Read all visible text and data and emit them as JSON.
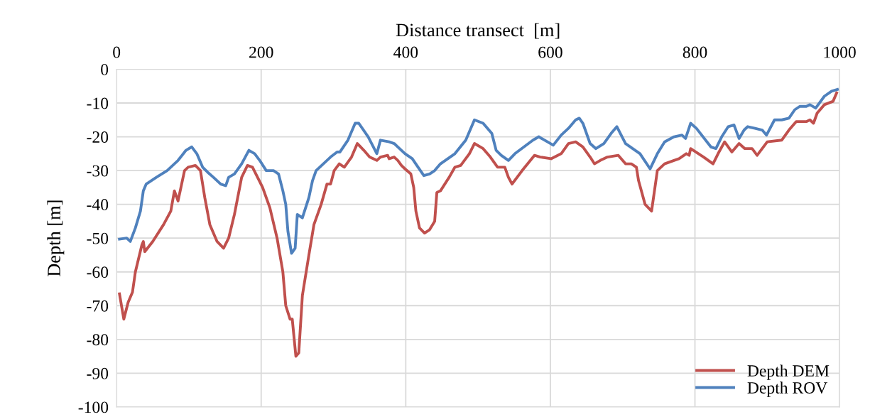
{
  "chart_data": {
    "type": "line",
    "xlabel": "Distance transect  [m]",
    "ylabel": "Depth [m]",
    "xlim": [
      0,
      1000
    ],
    "xticks": [
      0,
      200,
      400,
      600,
      800,
      1000
    ],
    "ylim": [
      -100,
      0
    ],
    "yticks": [
      -100,
      -90,
      -80,
      -70,
      -60,
      -50,
      -40,
      -30,
      -20,
      -10,
      0
    ],
    "grid": true,
    "legend": "bottom right",
    "line_style": "solid",
    "marker": "none",
    "series": [
      {
        "name": "Depth DEM",
        "color": "#c0504d",
        "x": [
          4,
          10,
          16,
          22,
          26,
          35,
          37,
          39,
          50,
          65,
          75,
          80,
          85,
          94,
          99,
          109,
          116,
          122,
          129,
          139,
          148,
          155,
          163,
          173,
          181,
          188,
          195,
          202,
          212,
          222,
          230,
          234,
          240,
          243,
          248,
          252,
          257,
          266,
          273,
          283,
          291,
          296,
          301,
          308,
          315,
          325,
          333,
          342,
          350,
          360,
          365,
          375,
          377,
          384,
          389,
          394,
          399,
          407,
          411,
          414,
          419,
          426,
          433,
          440,
          443,
          448,
          460,
          468,
          476,
          488,
          495,
          507,
          517,
          527,
          537,
          542,
          547,
          561,
          578,
          586,
          601,
          615,
          625,
          635,
          645,
          655,
          661,
          669,
          679,
          694,
          704,
          712,
          719,
          722,
          731,
          740,
          748,
          758,
          771,
          778,
          788,
          792,
          794,
          812,
          825,
          832,
          841,
          851,
          861,
          869,
          879,
          886,
          900,
          920,
          930,
          940,
          954,
          959,
          964,
          969,
          979,
          991,
          996
        ],
        "values": [
          -66.5,
          -74,
          -69,
          -66,
          -60,
          -52,
          -51,
          -54,
          -51,
          -46,
          -42,
          -36,
          -39,
          -30,
          -29,
          -28.5,
          -30,
          -38,
          -46,
          -51,
          -53,
          -50,
          -43,
          -32,
          -28.5,
          -29,
          -32,
          -35,
          -41,
          -50,
          -60,
          -70,
          -74,
          -74,
          -85,
          -84,
          -67,
          -55,
          -46,
          -40,
          -34,
          -34,
          -30,
          -28,
          -29,
          -26,
          -22,
          -24,
          -26,
          -27,
          -26,
          -25.5,
          -26.5,
          -26,
          -27,
          -28.5,
          -29.5,
          -31,
          -35,
          -42,
          -47,
          -48.5,
          -47.5,
          -45,
          -36.5,
          -36,
          -32,
          -29,
          -28.5,
          -25,
          -22,
          -23.5,
          -26,
          -29,
          -29,
          -32,
          -34,
          -30,
          -25.5,
          -26,
          -26.5,
          -25,
          -22,
          -21.5,
          -23,
          -26,
          -28,
          -27,
          -26,
          -25.5,
          -28,
          -28,
          -29,
          -33,
          -40,
          -42,
          -30,
          -28,
          -27,
          -26.5,
          -25,
          -25.5,
          -23.5,
          -26,
          -28,
          -25,
          -21.5,
          -24.5,
          -22,
          -23.5,
          -23.5,
          -25.5,
          -21.5,
          -21,
          -18,
          -15.5,
          -15.5,
          -15,
          -16,
          -13,
          -10.5,
          -9.5,
          -7
        ]
      },
      {
        "name": "Depth ROV",
        "color": "#4f81bd",
        "x": [
          4,
          14,
          19,
          26,
          33,
          37,
          41,
          55,
          70,
          85,
          96,
          104,
          111,
          119,
          126,
          134,
          144,
          151,
          155,
          163,
          173,
          183,
          191,
          198,
          207,
          217,
          224,
          230,
          234,
          237,
          242,
          247,
          250,
          257,
          266,
          271,
          276,
          286,
          296,
          305,
          309,
          320,
          330,
          335,
          348,
          360,
          365,
          377,
          384,
          389,
          399,
          409,
          417,
          425,
          433,
          440,
          448,
          468,
          483,
          495,
          507,
          519,
          525,
          532,
          542,
          551,
          576,
          584,
          596,
          604,
          615,
          625,
          635,
          640,
          645,
          655,
          663,
          674,
          684,
          692,
          704,
          724,
          738,
          748,
          758,
          771,
          782,
          787,
          794,
          802,
          822,
          829,
          837,
          846,
          854,
          861,
          868,
          873,
          883,
          893,
          899,
          910,
          920,
          930,
          938,
          945,
          954,
          959,
          967,
          979,
          989,
          997
        ],
        "values": [
          -50.3,
          -50,
          -51,
          -47,
          -42,
          -36,
          -34,
          -32,
          -30,
          -27,
          -24,
          -23,
          -25,
          -29,
          -30.5,
          -32,
          -34,
          -34.5,
          -32,
          -31,
          -28,
          -24,
          -25,
          -27,
          -30,
          -30,
          -31,
          -36,
          -40,
          -48,
          -54.5,
          -53,
          -43,
          -44,
          -38,
          -33,
          -30,
          -28,
          -26,
          -24.5,
          -24.5,
          -21,
          -16,
          -16,
          -20,
          -25,
          -21,
          -21.5,
          -22,
          -23,
          -25,
          -26.5,
          -29,
          -31.5,
          -31,
          -30,
          -28,
          -25,
          -21,
          -15,
          -16,
          -19,
          -24,
          -25.5,
          -27,
          -25,
          -21,
          -20,
          -21.5,
          -22.5,
          -19.5,
          -17.5,
          -15,
          -14.5,
          -16,
          -22,
          -23.5,
          -22,
          -19,
          -17,
          -22,
          -25,
          -29.5,
          -25,
          -21.5,
          -20,
          -19.5,
          -20.5,
          -16,
          -17.5,
          -23,
          -23.5,
          -20,
          -17,
          -16.5,
          -20.5,
          -18,
          -17,
          -17.5,
          -18,
          -19.5,
          -15,
          -15,
          -14.5,
          -12,
          -11,
          -11,
          -10.5,
          -11.5,
          -8,
          -6.5,
          -6
        ]
      }
    ]
  }
}
